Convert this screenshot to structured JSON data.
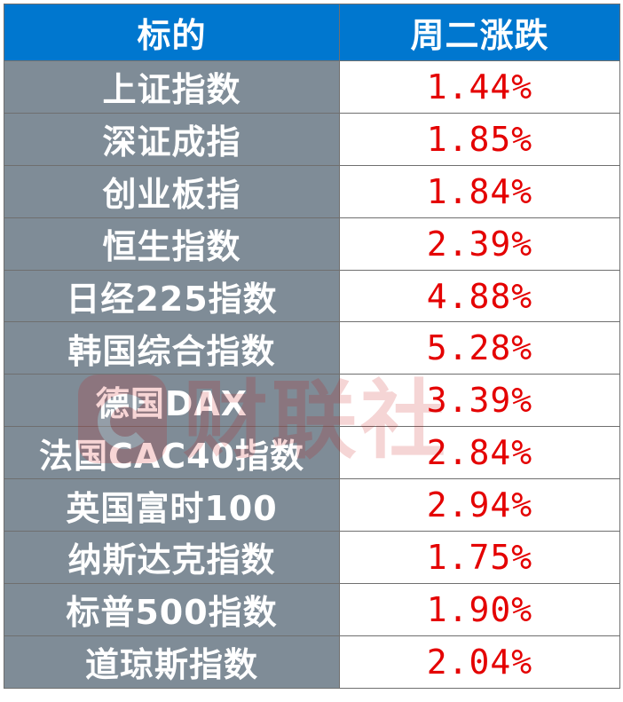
{
  "table": {
    "headers": {
      "name": "标的",
      "change": "周二涨跌"
    },
    "rows": [
      {
        "name": "上证指数",
        "change": "1.44%"
      },
      {
        "name": "深证成指",
        "change": "1.85%"
      },
      {
        "name": "创业板指",
        "change": "1.84%"
      },
      {
        "name": "恒生指数",
        "change": "2.39%"
      },
      {
        "name": "日经225指数",
        "change": "4.88%"
      },
      {
        "name": "韩国综合指数",
        "change": "5.28%"
      },
      {
        "name": "德国DAX",
        "change": "3.39%"
      },
      {
        "name": "法国CAC40指数",
        "change": "2.84%"
      },
      {
        "name": "英国富时100",
        "change": "2.94%"
      },
      {
        "name": "纳斯达克指数",
        "change": "1.75%"
      },
      {
        "name": "标普500指数",
        "change": "1.90%"
      },
      {
        "name": "道琼斯指数",
        "change": "2.04%"
      }
    ]
  },
  "watermark": {
    "text": "财联社",
    "icon": "cls-logo-icon"
  },
  "colors": {
    "header_bg": "#0077cf",
    "name_cell_bg": "#7f8c97",
    "value_text": "#e40000"
  }
}
